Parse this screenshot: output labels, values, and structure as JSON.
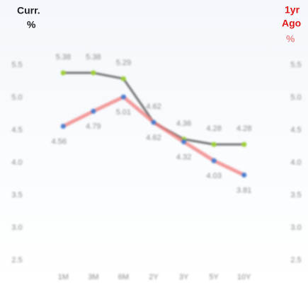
{
  "chart_data": {
    "type": "line",
    "title": "Curr.",
    "ylabel": "%",
    "y2title": "1yr",
    "y2subtitle": "Ago",
    "y2label": "%",
    "categories": [
      "1M",
      "3M",
      "6M",
      "2Y",
      "3Y",
      "5Y",
      "10Y"
    ],
    "series": [
      {
        "name": "Curr.",
        "color": "#6e6e6e",
        "marker_color": "#9acd32",
        "values": [
          5.38,
          5.38,
          5.29,
          4.62,
          4.36,
          4.28,
          4.28
        ]
      },
      {
        "name": "1yr Ago",
        "color": "#f07878",
        "marker_color": "#4a7bd0",
        "axis": "y2",
        "values": [
          4.56,
          4.79,
          5.01,
          4.62,
          4.32,
          4.03,
          3.81
        ]
      }
    ],
    "ylim": [
      2.3,
      5.8
    ],
    "yticks": [
      {
        "value": 2.5,
        "label": "2.5"
      },
      {
        "value": 3,
        "label": "3.0"
      },
      {
        "value": 3.5,
        "label": "3.5"
      },
      {
        "value": 4,
        "label": "4.0"
      },
      {
        "value": 4.5,
        "label": "4.5"
      },
      {
        "value": 5,
        "label": "5.0"
      },
      {
        "value": 5.5,
        "label": "5.5"
      }
    ],
    "y2lim": [
      2.3,
      5.8
    ],
    "y2ticks": [
      {
        "value": 2.5,
        "label": "2.5"
      },
      {
        "value": 3,
        "label": "3.0"
      },
      {
        "value": 3.5,
        "label": "3.5"
      },
      {
        "value": 4,
        "label": "4.0"
      },
      {
        "value": 4.5,
        "label": "4.5"
      },
      {
        "value": 5,
        "label": "5.0"
      },
      {
        "value": 5.5,
        "label": "5.5"
      }
    ],
    "grid": false
  }
}
